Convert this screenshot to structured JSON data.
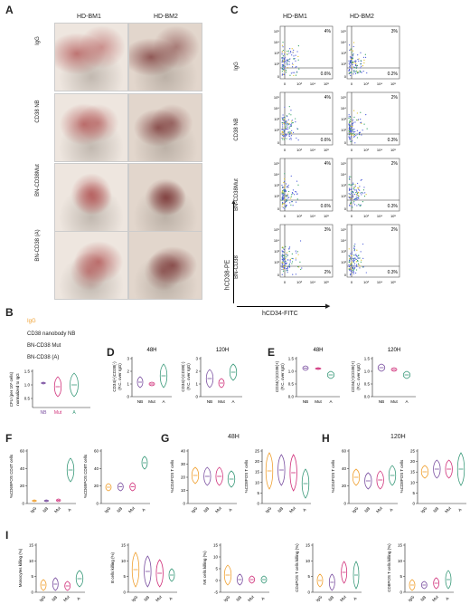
{
  "panels": {
    "A": {
      "letter": "A",
      "cols": [
        "HD-BM1",
        "HD-BM2"
      ],
      "rows": [
        "IgG",
        "CD38 NB",
        "BN-CD38Mut",
        "BN-CD38 (A)"
      ]
    },
    "C": {
      "letter": "C",
      "cols": [
        "HD-BM1",
        "HD-BM2"
      ],
      "rows": [
        "IgG",
        "CD38 NB",
        "BN-CD38Mut",
        "BN-CD38"
      ],
      "ylabel": "hCD38-PE",
      "xlabel": "hCD34-FITC",
      "axis_ticks_y": [
        "10⁵",
        "10⁴",
        "10³",
        "10²",
        "0"
      ],
      "axis_ticks_x": [
        "0",
        "10³",
        "10⁴",
        "10⁵"
      ],
      "top_pct": [
        [
          "4%",
          "3%"
        ],
        [
          "4%",
          "2%"
        ],
        [
          "4%",
          "2%"
        ],
        [
          "3%",
          "2%"
        ]
      ],
      "bottom_pct": [
        [
          "0.6%",
          "0.2%"
        ],
        [
          "0.6%",
          "0.3%"
        ],
        [
          "0.6%",
          "0.3%"
        ],
        [
          "2%",
          "0.3%"
        ]
      ]
    },
    "B": {
      "letter": "B",
      "legend": [
        "IgG",
        "CD38 nanobody NB",
        "BN-CD38 Mut",
        "BN-CD38 (A)"
      ],
      "ylabel": "CFU (per 10⁵ cells) normalized to IgG",
      "yticks": [
        "1.5",
        "1.0",
        "0.5"
      ],
      "xticks": [
        "NB",
        "Mut",
        "A"
      ]
    },
    "D": {
      "letter": "D",
      "titles": [
        "48H",
        "120H"
      ],
      "ylabels": [
        "CD34(+)CD38(-) (F.C. over IgG)",
        "CD34(+)CD38(-) (F.C. over IgG)"
      ],
      "yticks1": [
        "3",
        "2",
        "1",
        "0"
      ],
      "yticks2": [
        "3",
        "2",
        "1",
        "0"
      ],
      "xticks": [
        "NB",
        "Mut",
        "A"
      ]
    },
    "E": {
      "letter": "E",
      "titles": [
        "48H",
        "120H"
      ],
      "ylabels": [
        "CD34(+)CD38(+) (F.C. over IgG)",
        "CD34(+)CD38(+) (F.C. over IgG)"
      ],
      "yticks1": [
        "1.5",
        "1.0",
        "0.5",
        "0.0"
      ],
      "yticks2": [
        "1.5",
        "1.0",
        "0.5",
        "0.0"
      ],
      "xticks": [
        "NB",
        "Mut",
        "A"
      ]
    },
    "F": {
      "letter": "F",
      "ylabels": [
        "%CD69POS CD4T cells",
        "%CD69POS CD8T cells"
      ],
      "yticks1": [
        "60",
        "40",
        "20",
        "0"
      ],
      "yticks2": [
        "60",
        "40",
        "20",
        "0"
      ],
      "xticks": [
        "IgG",
        "NB",
        "Mut",
        "A"
      ]
    },
    "G": {
      "letter": "G",
      "title": "48H",
      "ylabels": [
        "%CD4POS T cells",
        "%CD8POS T cells"
      ],
      "yticks1": [
        "40",
        "30",
        "20",
        "10",
        "0"
      ],
      "yticks2": [
        "25",
        "20",
        "15",
        "10",
        "5",
        "0"
      ],
      "xticks": [
        "IgG",
        "NB",
        "Mut",
        "A"
      ]
    },
    "H": {
      "letter": "H",
      "title": "120H",
      "ylabels": [
        "%CD4POS T cells",
        "%CD8POS T cells"
      ],
      "yticks1": [
        "60",
        "40",
        "20",
        "0"
      ],
      "yticks2": [
        "25",
        "20",
        "15",
        "10",
        "5",
        "0"
      ],
      "xticks": [
        "IgG",
        "NB",
        "Mut",
        "A"
      ]
    },
    "I": {
      "letter": "I",
      "ylabels": [
        "Monocytes killing (%)",
        "B cells killing (%)",
        "NK cells killing (%)",
        "CD4POS T cells killing (%)",
        "CD8POS T cells killing (%)"
      ],
      "yticks": [
        [
          "15",
          "10",
          "5",
          "0"
        ],
        [
          "15",
          "10",
          "5",
          "0"
        ],
        [
          "15",
          "10",
          "5",
          "0",
          "-5"
        ],
        [
          "15",
          "10",
          "5",
          "0"
        ],
        [
          "15",
          "10",
          "5",
          "0"
        ]
      ],
      "xticks": [
        "IgG",
        "NB",
        "Mut",
        "A"
      ]
    }
  },
  "colors": {
    "igg": "#f0a030",
    "nb": "#7a4fa0",
    "mut": "#d0307a",
    "a": "#3a9a7a",
    "bm1": "#b05050",
    "bm2": "#8a3030"
  }
}
